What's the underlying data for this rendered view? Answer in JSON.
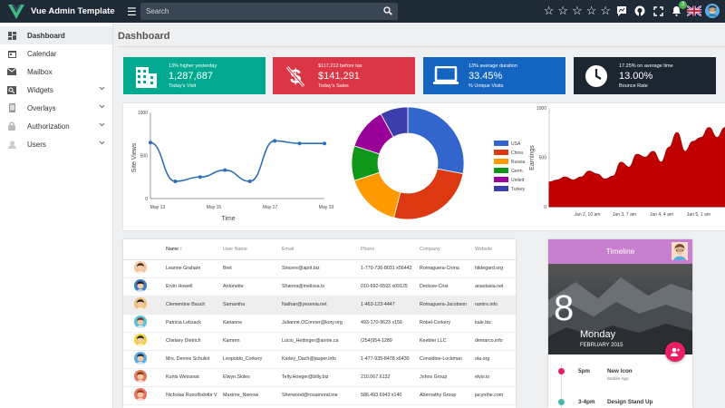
{
  "app": {
    "title": "Vue Admin Template",
    "search_placeholder": "Search",
    "notification_count": "3",
    "page_title": "Dashboard"
  },
  "sidebar": {
    "items": [
      {
        "label": "Dashboard",
        "icon": "dashboard-icon"
      },
      {
        "label": "Calendar",
        "icon": "calendar-icon"
      },
      {
        "label": "Mailbox",
        "icon": "mail-icon"
      },
      {
        "label": "Widgets",
        "icon": "widgets-icon"
      },
      {
        "label": "Overlays",
        "icon": "overlays-icon"
      },
      {
        "label": "Authorization",
        "icon": "lock-icon"
      },
      {
        "label": "Users",
        "icon": "users-icon"
      }
    ]
  },
  "stats": [
    {
      "caption": "13% higher yesterday",
      "value": "1,287,687",
      "label": "Today's Visit",
      "color": "#00a98f",
      "icon": "building-icon"
    },
    {
      "caption": "$117,212 before tax",
      "value": "$141,291",
      "label": "Today's Sales",
      "color": "#dc3545",
      "icon": "no-dollar-icon"
    },
    {
      "caption": "13% average duration",
      "value": "33.45%",
      "label": "% Unique Visits",
      "color": "#1565c0",
      "icon": "laptop-icon"
    },
    {
      "caption": "17.25% on average time",
      "value": "13.00%",
      "label": "Bounce Rate",
      "color": "#1c2631",
      "icon": "clock-icon"
    }
  ],
  "chart_data": [
    {
      "type": "line",
      "xlabel": "Time",
      "ylabel": "Site Views",
      "ylim": [
        0,
        1000
      ],
      "yticks": [
        "1000",
        "500",
        "0"
      ],
      "xticks": [
        "May 13",
        "May 15",
        "May 17",
        "May 19"
      ],
      "x": [
        0,
        1,
        2,
        3,
        4,
        5,
        6,
        7
      ],
      "values": [
        650,
        200,
        250,
        330,
        200,
        670,
        640,
        640
      ],
      "color": "#2c6fb7"
    },
    {
      "type": "pie",
      "labels": [
        "USA",
        "China",
        "Russia",
        "Germ.",
        "United",
        "Turkey"
      ],
      "values": [
        28,
        26,
        16,
        10,
        12,
        8
      ],
      "colors": [
        "#3366cc",
        "#dc3912",
        "#ff9900",
        "#109618",
        "#990099",
        "#3b3eac"
      ]
    },
    {
      "type": "area",
      "ylabel": "Earnings",
      "ylim": [
        0,
        1000
      ],
      "yticks": [
        "1000",
        "500",
        "0"
      ],
      "xticks": [
        "Jan 2, 10 am",
        "Jan 3, 7 am",
        "Jan 4, 4 am",
        "Jan 5, 1 am"
      ],
      "values": [
        250,
        270,
        300,
        270,
        300,
        360,
        330,
        280,
        310,
        450,
        400,
        530,
        500,
        560,
        450,
        600,
        750,
        560,
        660,
        700,
        800,
        700,
        800
      ],
      "color": "#c00000"
    }
  ],
  "table": {
    "columns": [
      "Name",
      "User Name",
      "Email",
      "Phone",
      "Company",
      "Website"
    ],
    "rows": [
      {
        "name": "Leanne Graham",
        "username": "Bret",
        "email": "Sincere@april.biz",
        "phone": "1-770-736-8031 x56442",
        "company": "Romaguera-Crona",
        "website": "hildegard.org",
        "avatar": "#f4c7a1",
        "hair": "#3b2b20"
      },
      {
        "name": "Ervin Howell",
        "username": "Antonette",
        "email": "Shanna@melissa.tv",
        "phone": "010-692-6593 x09125",
        "company": "Deckow-Crist",
        "website": "anastasia.net",
        "avatar": "#3c7dc4",
        "hair": "#2a1a10"
      },
      {
        "name": "Clementine Bauch",
        "username": "Samantha",
        "email": "Nathan@yesenia.net",
        "phone": "1-463-123-4447",
        "company": "Romaguera-Jacobson",
        "website": "ramiro.info",
        "avatar": "#f0c080",
        "hair": "#222222"
      },
      {
        "name": "Patricia Lebsack",
        "username": "Karianne",
        "email": "Julianne.OConner@kory.org",
        "phone": "493-170-9623 x156",
        "company": "Robel-Corkery",
        "website": "kale.biz",
        "avatar": "#5bc0de",
        "hair": "#6b3a1a"
      },
      {
        "name": "Chelsey Dietrich",
        "username": "Kamren",
        "email": "Lucio_Hettinger@annie.ca",
        "phone": "(254)954-1289",
        "company": "Keebler LLC",
        "website": "demarco.info",
        "avatar": "#f4d03f",
        "hair": "#2b2b2b"
      },
      {
        "name": "Mrs. Dennis Schulist",
        "username": "Leopoldo_Corkery",
        "email": "Karley_Dach@jasper.info",
        "phone": "1-477-935-8478 x6430",
        "company": "Considine-Lockman",
        "website": "ola.org",
        "avatar": "#5dade2",
        "hair": "#1f2a44"
      },
      {
        "name": "Kurtis Weissnat",
        "username": "Elwyn.Skiles",
        "email": "Telly.Hoeger@billy.biz",
        "phone": "210.067.6132",
        "company": "Johns Group",
        "website": "elvis.io",
        "avatar": "#e07a5f",
        "hair": "#7a3b12"
      },
      {
        "name": "Nicholas Runolfsdottir V",
        "username": "Maxime_Nienow",
        "email": "Sherwood@rosamond.me",
        "phone": "586.493.6943 x140",
        "company": "Abernathy Group",
        "website": "jacynthe.com",
        "avatar": "#ec7063",
        "hair": "#8b4513"
      }
    ]
  },
  "timeline": {
    "title": "Timeline",
    "day": "8",
    "weekday": "Monday",
    "month_year": "FEBRUARY 2015",
    "events": [
      {
        "time": "5pm",
        "title": "New Icon",
        "subtitle": "Mobile App",
        "color": "#e91e63"
      },
      {
        "time": "3-4pm",
        "title": "Design Stand Up",
        "subtitle": "",
        "color": "#4db6ac"
      }
    ]
  }
}
